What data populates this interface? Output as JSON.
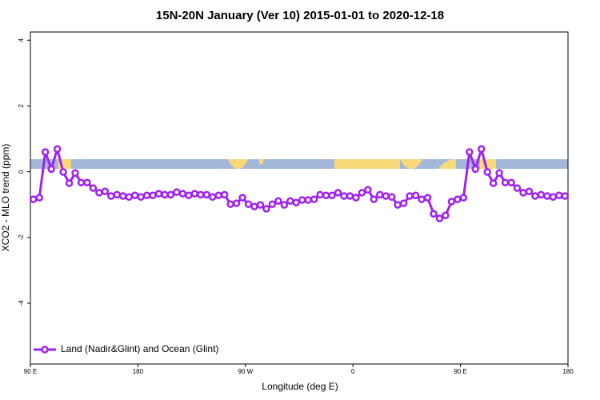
{
  "chart_data": {
    "type": "line",
    "title": "15N-20N January (Ver 10)   2015-01-01 to 2020-12-18",
    "x_label": "Longitude (deg E)",
    "y_label": "XCO2 - MLO trend (ppm)",
    "legend_position": "bottom-left",
    "xlim": [
      90,
      540
    ],
    "ylim": [
      -5.85,
      4.25
    ],
    "xticks": [
      {
        "value": 90,
        "label": "90 E"
      },
      180,
      {
        "value": 270,
        "label": "90 W"
      },
      {
        "value": 360,
        "label": "0"
      },
      {
        "value": 450,
        "label": "90 E"
      },
      {
        "value": 540,
        "label": "180"
      }
    ],
    "yticks": [
      -4,
      -2,
      0,
      2,
      4
    ],
    "x": [
      92.5,
      97.5,
      102.5,
      107.5,
      112.5,
      117.5,
      122.5,
      127.5,
      132.5,
      137.5,
      142.5,
      147.5,
      152.5,
      157.5,
      162.5,
      167.5,
      172.5,
      177.5,
      182.5,
      187.5,
      192.5,
      197.5,
      202.5,
      207.5,
      212.5,
      217.5,
      222.5,
      227.5,
      232.5,
      237.5,
      242.5,
      247.5,
      252.5,
      257.5,
      262.5,
      267.5,
      272.5,
      277.5,
      282.5,
      287.5,
      292.5,
      297.5,
      302.5,
      307.5,
      312.5,
      317.5,
      322.5,
      327.5,
      332.5,
      337.5,
      342.5,
      347.5,
      352.5,
      357.5,
      362.5,
      367.5,
      372.5,
      377.5,
      382.5,
      387.5,
      392.5,
      397.5,
      402.5,
      407.5,
      412.5,
      417.5,
      422.5,
      427.5,
      432.5,
      437.5,
      442.5,
      447.5,
      452.5,
      457.5,
      462.5,
      467.5,
      472.5,
      477.5,
      482.5,
      487.5,
      492.5,
      497.5,
      502.5,
      507.5,
      512.5,
      517.5,
      522.5,
      527.5,
      532.5,
      537.5
    ],
    "series": [
      {
        "name": "Land (Nadir&Glint) and Ocean (Glint)",
        "color": "#a020f0",
        "values": [
          -0.84,
          -0.79,
          0.6,
          0.08,
          0.69,
          -0.01,
          -0.35,
          -0.04,
          -0.33,
          -0.33,
          -0.5,
          -0.64,
          -0.6,
          -0.74,
          -0.7,
          -0.74,
          -0.77,
          -0.72,
          -0.77,
          -0.72,
          -0.72,
          -0.67,
          -0.7,
          -0.7,
          -0.62,
          -0.67,
          -0.72,
          -0.67,
          -0.7,
          -0.7,
          -0.77,
          -0.72,
          -0.7,
          -0.99,
          -0.96,
          -0.79,
          -0.99,
          -1.06,
          -1.01,
          -1.13,
          -0.99,
          -0.89,
          -1.01,
          -0.89,
          -0.94,
          -0.86,
          -0.86,
          -0.84,
          -0.7,
          -0.72,
          -0.72,
          -0.64,
          -0.74,
          -0.74,
          -0.79,
          -0.64,
          -0.55,
          -0.84,
          -0.7,
          -0.74,
          -0.77,
          -1.01,
          -0.96,
          -0.74,
          -0.72,
          -0.84,
          -0.79,
          -1.28,
          -1.42,
          -1.33,
          -0.91,
          -0.84,
          -0.79,
          0.6,
          0.08,
          0.69,
          -0.01,
          -0.35,
          -0.04,
          -0.33,
          -0.33,
          -0.5,
          -0.64,
          -0.6,
          -0.74,
          -0.7,
          -0.74,
          -0.77,
          -0.72,
          -0.74
        ]
      }
    ]
  }
}
